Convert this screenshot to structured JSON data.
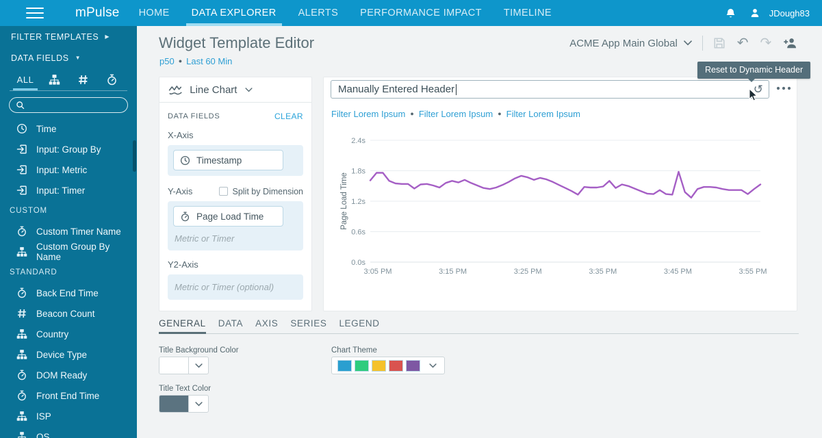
{
  "colors": {
    "nav_bar": "#0e96cb",
    "sidebar": "#0a7296",
    "page_bg": "#f1f3f4",
    "accent_blue": "#2e9fd4",
    "chart_line": "#a55fc5",
    "tooltip_bg": "#546e7a"
  },
  "nav": {
    "brand": "mPulse",
    "items": [
      {
        "label": "HOME",
        "active": false
      },
      {
        "label": "DATA EXPLORER",
        "active": true
      },
      {
        "label": "ALERTS",
        "active": false
      },
      {
        "label": "PERFORMANCE IMPACT",
        "active": false
      },
      {
        "label": "TIMELINE",
        "active": false
      }
    ],
    "user": "JDough83"
  },
  "sidebar": {
    "filter_templates_label": "FILTER TEMPLATES",
    "data_fields_label": "DATA FIELDS",
    "tabs": [
      {
        "label": "ALL",
        "icon": null,
        "active": true
      },
      {
        "label": null,
        "icon": "sitemap",
        "active": false
      },
      {
        "label": null,
        "icon": "hash",
        "active": false
      },
      {
        "label": null,
        "icon": "stopwatch",
        "active": false
      }
    ],
    "search": {
      "placeholder": "",
      "value": ""
    },
    "groups": [
      {
        "header": null,
        "items": [
          {
            "icon": "clock",
            "label": "Time"
          },
          {
            "icon": "sign-in",
            "label": "Input: Group By"
          },
          {
            "icon": "sign-in",
            "label": "Input: Metric"
          },
          {
            "icon": "sign-in",
            "label": "Input: Timer"
          }
        ]
      },
      {
        "header": "CUSTOM",
        "items": [
          {
            "icon": "stopwatch",
            "label": "Custom Timer Name"
          },
          {
            "icon": "sitemap",
            "label": "Custom Group By Name"
          }
        ]
      },
      {
        "header": "STANDARD",
        "items": [
          {
            "icon": "stopwatch",
            "label": "Back End Time"
          },
          {
            "icon": "hash",
            "label": "Beacon Count"
          },
          {
            "icon": "sitemap",
            "label": "Country"
          },
          {
            "icon": "sitemap",
            "label": "Device Type"
          },
          {
            "icon": "stopwatch",
            "label": "DOM Ready"
          },
          {
            "icon": "stopwatch",
            "label": "Front End Time"
          },
          {
            "icon": "sitemap",
            "label": "ISP"
          },
          {
            "icon": "sitemap",
            "label": "OS"
          }
        ]
      }
    ]
  },
  "header": {
    "title": "Widget Template Editor",
    "metric": "p50",
    "time_range": "Last 60 Min",
    "app_selector": "ACME App Main Global"
  },
  "config_panel": {
    "chart_type": "Line Chart",
    "fields_label": "DATA FIELDS",
    "clear_label": "CLEAR",
    "x_axis_label": "X-Axis",
    "x_axis_value": "Timestamp",
    "y_axis_label": "Y-Axis",
    "split_label": "Split by Dimension",
    "y_axis_value": "Page Load Time",
    "y_axis_placeholder": "Metric or Timer",
    "y2_axis_label": "Y2-Axis",
    "y2_axis_placeholder": "Metric or Timer (optional)"
  },
  "widget": {
    "header_value": "Manually Entered Header",
    "tooltip": "Reset to Dynamic Header",
    "filters": [
      "Filter Lorem Ipsum",
      "Filter Lorem Ipsum",
      "Filter Lorem Ipsum"
    ]
  },
  "chart_data": {
    "type": "line",
    "title": "Manually Entered Header",
    "xlabel": "",
    "ylabel": "Page Load Time",
    "ylim": [
      0,
      2.4
    ],
    "y_ticks": [
      "0.0s",
      "0.6s",
      "1.2s",
      "1.8s",
      "2.4s"
    ],
    "x_ticks": [
      "3:05 PM",
      "3:15 PM",
      "3:25 PM",
      "3:35 PM",
      "3:45 PM",
      "3:55 PM"
    ],
    "x_start": "3:04 PM",
    "x_end": "3:56 PM",
    "grid": true,
    "legend": false,
    "series": [
      {
        "name": "Page Load Time",
        "color": "#a55fc5",
        "values": [
          1.61,
          1.76,
          1.76,
          1.6,
          1.55,
          1.54,
          1.54,
          1.45,
          1.53,
          1.54,
          1.51,
          1.47,
          1.56,
          1.6,
          1.57,
          1.62,
          1.56,
          1.51,
          1.46,
          1.44,
          1.47,
          1.52,
          1.58,
          1.65,
          1.7,
          1.67,
          1.62,
          1.66,
          1.63,
          1.58,
          1.52,
          1.46,
          1.4,
          1.33,
          1.48,
          1.47,
          1.47,
          1.49,
          1.6,
          1.46,
          1.53,
          1.5,
          1.45,
          1.4,
          1.35,
          1.34,
          1.42,
          1.34,
          1.33,
          1.78,
          1.38,
          1.27,
          1.44,
          1.48,
          1.48,
          1.47,
          1.44,
          1.42,
          1.42,
          1.42,
          1.34,
          1.44,
          1.53
        ]
      }
    ]
  },
  "settings": {
    "tabs": [
      {
        "label": "GENERAL",
        "active": true
      },
      {
        "label": "DATA",
        "active": false
      },
      {
        "label": "AXIS",
        "active": false
      },
      {
        "label": "SERIES",
        "active": false
      },
      {
        "label": "LEGEND",
        "active": false
      }
    ],
    "controls": {
      "title_bg": {
        "label": "Title Background Color",
        "value": "#ffffff"
      },
      "chart_theme": {
        "label": "Chart Theme",
        "colors": [
          "#2a9fd0",
          "#2ecc7e",
          "#f5c22a",
          "#d9534f",
          "#7e57a3"
        ]
      },
      "title_text": {
        "label": "Title Text Color",
        "value": "#5b7380"
      }
    }
  }
}
